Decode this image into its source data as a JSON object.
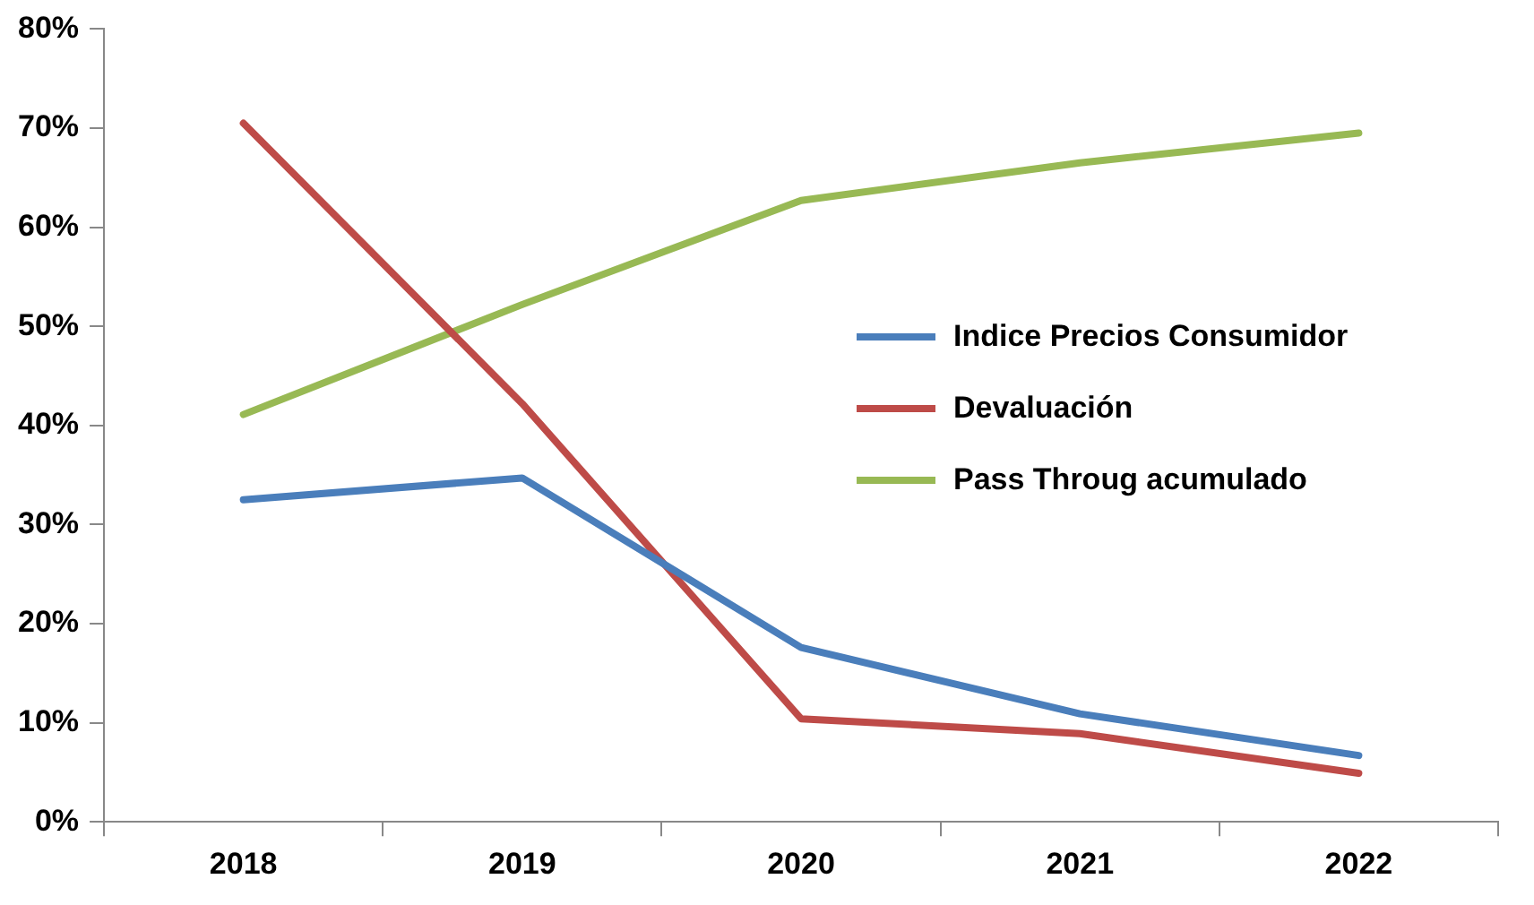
{
  "chart_data": {
    "type": "line",
    "categories": [
      "2018",
      "2019",
      "2020",
      "2021",
      "2022"
    ],
    "series": [
      {
        "name": "Indice Precios Consumidor",
        "color": "#4a7ebb",
        "values": [
          32.5,
          34.7,
          17.6,
          10.9,
          6.7
        ]
      },
      {
        "name": "Devaluación",
        "color": "#be4b48",
        "values": [
          70.5,
          42.2,
          10.4,
          8.9,
          4.9
        ]
      },
      {
        "name": "Pass Throug acumulado",
        "color": "#98b954",
        "values": [
          41.1,
          52.2,
          62.7,
          66.5,
          69.5
        ]
      }
    ],
    "ylim": [
      0,
      80
    ],
    "yticks": [
      {
        "value": 0,
        "label": "0%"
      },
      {
        "value": 10,
        "label": "10%"
      },
      {
        "value": 20,
        "label": "20%"
      },
      {
        "value": 30,
        "label": "30%"
      },
      {
        "value": 40,
        "label": "40%"
      },
      {
        "value": 50,
        "label": "50%"
      },
      {
        "value": 60,
        "label": "60%"
      },
      {
        "value": 70,
        "label": "70%"
      },
      {
        "value": 80,
        "label": "80%"
      }
    ],
    "grid": false,
    "legend": "right",
    "marker": "none",
    "line_style": "solid"
  }
}
